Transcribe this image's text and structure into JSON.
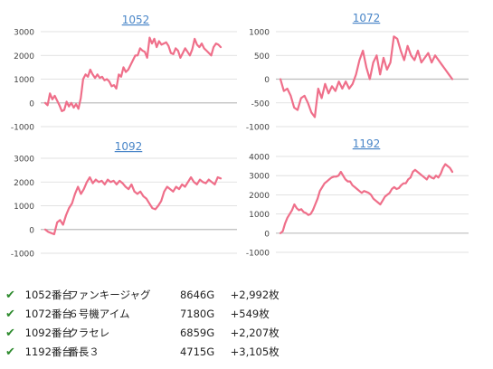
{
  "colors": {
    "line": "#ef6f8a",
    "grid": "#d9d9d9",
    "axis": "#bdbdbd",
    "title": "#4a86c8",
    "tick": "#444444",
    "check": "#2e8b2e"
  },
  "chart_data": [
    {
      "type": "line",
      "title": "1052",
      "ylim": [
        -1000,
        3000
      ],
      "yticks": [
        3000,
        2000,
        1000,
        0,
        -1000
      ],
      "grid": true,
      "x": [
        0,
        1,
        2,
        3,
        4,
        5,
        6,
        7,
        8,
        9,
        10,
        11,
        12,
        13,
        14,
        15,
        16,
        17,
        18,
        19,
        20,
        21,
        22,
        23,
        24,
        25,
        26,
        27,
        28,
        29,
        30,
        31,
        32,
        33,
        34,
        35,
        36,
        37,
        38,
        39,
        40,
        41,
        42,
        43,
        44,
        45,
        46,
        47,
        48,
        49,
        50,
        51,
        52,
        53,
        54,
        55,
        56,
        57,
        58,
        59,
        60,
        61,
        62,
        63,
        64,
        65,
        66,
        67,
        68,
        69,
        70,
        71,
        72,
        73,
        74
      ],
      "values": [
        0,
        -100,
        400,
        150,
        300,
        100,
        -100,
        -350,
        -300,
        50,
        -150,
        0,
        -200,
        -50,
        -250,
        200,
        1000,
        1200,
        1100,
        1400,
        1200,
        1050,
        1200,
        1050,
        1100,
        950,
        1000,
        900,
        700,
        750,
        600,
        1200,
        1100,
        1500,
        1300,
        1400,
        1600,
        1800,
        2000,
        2000,
        2300,
        2200,
        2150,
        1900,
        2750,
        2500,
        2700,
        2350,
        2600,
        2450,
        2500,
        2550,
        2400,
        2100,
        2050,
        2300,
        2200,
        1900,
        2100,
        2300,
        2150,
        2000,
        2250,
        2700,
        2450,
        2350,
        2500,
        2300,
        2200,
        2100,
        2000,
        2350,
        2500,
        2450,
        2350
      ],
      "series": [
        {
          "values_ref": "values"
        }
      ]
    },
    {
      "type": "line",
      "title": "1072",
      "ylim": [
        -1000,
        1000
      ],
      "yticks": [
        1000,
        500,
        0,
        -500,
        -1000
      ],
      "grid": true,
      "x": [
        0,
        1,
        2,
        3,
        4,
        5,
        6,
        7,
        8,
        9,
        10,
        11,
        12,
        13,
        14,
        15,
        16,
        17,
        18,
        19,
        20,
        21,
        22,
        23,
        24,
        25,
        26,
        27,
        28,
        29,
        30,
        31,
        32,
        33,
        34,
        35,
        36,
        37,
        38,
        39,
        40,
        41,
        42,
        43,
        44,
        45,
        46,
        47,
        48,
        49,
        50
      ],
      "values": [
        0,
        -250,
        -200,
        -350,
        -600,
        -650,
        -400,
        -350,
        -500,
        -700,
        -800,
        -200,
        -400,
        -100,
        -300,
        -150,
        -250,
        -50,
        -200,
        -50,
        -200,
        -100,
        100,
        400,
        600,
        250,
        0,
        350,
        500,
        100,
        450,
        200,
        350,
        900,
        850,
        600,
        400,
        700,
        500,
        400,
        600,
        350,
        450,
        550,
        350,
        500,
        400,
        300,
        200,
        100,
        0
      ],
      "series": [
        {
          "values_ref": "values"
        }
      ]
    },
    {
      "type": "line",
      "title": "1092",
      "ylim": [
        -1000,
        3000
      ],
      "yticks": [
        3000,
        2000,
        1000,
        0,
        -1000
      ],
      "grid": true,
      "x": [
        0,
        1,
        2,
        3,
        4,
        5,
        6,
        7,
        8,
        9,
        10,
        11,
        12,
        13,
        14,
        15,
        16,
        17,
        18,
        19,
        20,
        21,
        22,
        23,
        24,
        25,
        26,
        27,
        28,
        29,
        30,
        31,
        32,
        33,
        34,
        35,
        36,
        37,
        38,
        39,
        40,
        41,
        42,
        43,
        44,
        45,
        46,
        47,
        48,
        49,
        50,
        51,
        52,
        53,
        54,
        55,
        56,
        57,
        58,
        59
      ],
      "values": [
        0,
        -100,
        -150,
        -200,
        300,
        400,
        200,
        600,
        900,
        1100,
        1500,
        1800,
        1500,
        1700,
        2000,
        2200,
        1950,
        2100,
        2000,
        2050,
        1900,
        2100,
        2000,
        2050,
        1900,
        2050,
        1950,
        1800,
        1700,
        1900,
        1600,
        1500,
        1600,
        1400,
        1300,
        1100,
        900,
        850,
        1000,
        1200,
        1600,
        1800,
        1700,
        1600,
        1800,
        1700,
        1900,
        1800,
        2000,
        2200,
        2000,
        1900,
        2100,
        2000,
        1950,
        2100,
        2000,
        1900,
        2200,
        2150
      ],
      "series": [
        {
          "values_ref": "values"
        }
      ]
    },
    {
      "type": "line",
      "title": "1192",
      "ylim": [
        -1000,
        4000
      ],
      "yticks": [
        4000,
        3000,
        2000,
        1000,
        0,
        -1000
      ],
      "grid": true,
      "x": [
        0,
        1,
        2,
        3,
        4,
        5,
        6,
        7,
        8,
        9,
        10,
        11,
        12,
        13,
        14,
        15,
        16,
        17,
        18,
        19,
        20,
        21,
        22,
        23,
        24,
        25,
        26,
        27,
        28,
        29,
        30,
        31,
        32,
        33,
        34,
        35,
        36,
        37,
        38,
        39,
        40,
        41,
        42,
        43,
        44,
        45,
        46,
        47,
        48,
        49,
        50,
        51,
        52,
        53,
        54,
        55,
        56,
        57,
        58,
        59,
        60,
        61,
        62,
        63,
        64,
        65,
        66,
        67,
        68,
        69,
        70,
        71,
        72,
        73,
        74
      ],
      "values": [
        0,
        100,
        500,
        800,
        1000,
        1200,
        1500,
        1300,
        1200,
        1250,
        1100,
        1050,
        950,
        1000,
        1200,
        1500,
        1800,
        2200,
        2400,
        2600,
        2700,
        2800,
        2900,
        2950,
        2950,
        3000,
        3200,
        3000,
        2800,
        2700,
        2700,
        2500,
        2400,
        2300,
        2200,
        2100,
        2200,
        2150,
        2100,
        2000,
        1800,
        1700,
        1600,
        1500,
        1700,
        1900,
        2000,
        2100,
        2300,
        2400,
        2300,
        2350,
        2500,
        2600,
        2600,
        2800,
        2900,
        3200,
        3300,
        3200,
        3100,
        3000,
        2900,
        2800,
        3000,
        2900,
        2850,
        3000,
        2900,
        3100,
        3400,
        3600,
        3500,
        3400,
        3200
      ],
      "series": [
        {
          "values_ref": "values"
        }
      ]
    }
  ],
  "summary": [
    {
      "machine": "1052番台",
      "name": "ファンキージャグ",
      "games": "8646G",
      "result": "+2,992枚"
    },
    {
      "machine": "1072番台",
      "name": "６号機アイム",
      "games": "7180G",
      "result": "+549枚"
    },
    {
      "machine": "1092番台",
      "name": "クラセレ",
      "games": "6859G",
      "result": "+2,207枚"
    },
    {
      "machine": "1192番台",
      "name": "番長３",
      "games": "4715G",
      "result": "+3,105枚"
    }
  ],
  "check_icon": "check-icon",
  "check_glyph": "✔"
}
